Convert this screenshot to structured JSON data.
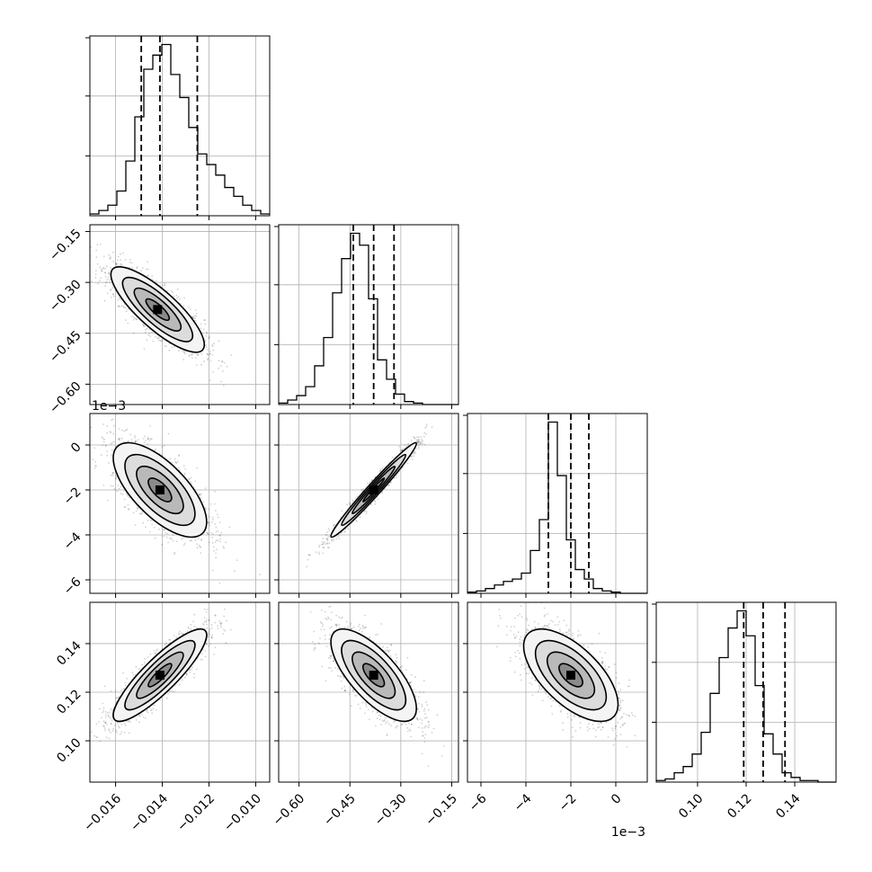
{
  "chart_data": {
    "type": "corner",
    "parameters": [
      {
        "range": [
          -0.0171,
          -0.0094
        ],
        "ticks": [
          -0.016,
          -0.014,
          -0.012,
          -0.01
        ],
        "tick_labels": [
          "−0.016",
          "−0.014",
          "−0.012",
          "−0.010"
        ],
        "offset_text": ""
      },
      {
        "range": [
          -0.66,
          -0.13
        ],
        "ticks": [
          -0.6,
          -0.45,
          -0.3,
          -0.15
        ],
        "tick_labels": [
          "−0.60",
          "−0.45",
          "−0.30",
          "−0.15"
        ],
        "offset_text": ""
      },
      {
        "range": [
          -0.0066,
          0.0014
        ],
        "ticks": [
          -0.006,
          -0.004,
          -0.002,
          0.0
        ],
        "tick_labels": [
          "−6",
          "−4",
          "−2",
          "0"
        ],
        "offset_text": "1e−3"
      },
      {
        "range": [
          0.083,
          0.157
        ],
        "ticks": [
          0.1,
          0.12,
          0.14
        ],
        "tick_labels": [
          "0.10",
          "0.12",
          "0.14"
        ],
        "offset_text": ""
      }
    ],
    "quantiles": [
      [
        -0.0149,
        -0.0141,
        -0.0125
      ],
      [
        -0.44,
        -0.38,
        -0.32
      ],
      [
        -0.003,
        -0.002,
        -0.0012
      ],
      [
        0.119,
        0.127,
        0.136
      ]
    ],
    "histograms": [
      {
        "edges_start": -0.0171,
        "bin_width": 0.000385,
        "counts": [
          1,
          3,
          6,
          14,
          31,
          56,
          83,
          91,
          97,
          80,
          67,
          50,
          35,
          29,
          23,
          16,
          11,
          6,
          3,
          1
        ]
      },
      {
        "edges_start": -0.66,
        "bin_width": 0.0265,
        "counts": [
          1,
          3,
          6,
          12,
          26,
          45,
          75,
          98,
          115,
          107,
          71,
          30,
          17,
          7,
          2,
          1,
          0,
          0,
          0,
          0
        ]
      },
      {
        "edges_start": -0.0066,
        "bin_width": 0.0004,
        "counts": [
          1,
          2,
          4,
          7,
          10,
          12,
          17,
          36,
          62,
          144,
          99,
          45,
          20,
          12,
          4,
          2,
          1,
          0,
          0,
          0
        ]
      },
      {
        "edges_start": 0.083,
        "bin_width": 0.0037,
        "counts": [
          1,
          2,
          6,
          10,
          18,
          32,
          57,
          80,
          99,
          110,
          94,
          62,
          31,
          18,
          6,
          3,
          1,
          1,
          0,
          0
        ]
      }
    ],
    "pairs": [
      {
        "row": 1,
        "col": 0,
        "mean": [
          -0.0142,
          -0.38
        ],
        "sd": [
          0.001,
          0.063
        ],
        "corr": -0.82
      },
      {
        "row": 2,
        "col": 0,
        "mean": [
          -0.0141,
          -0.002
        ],
        "sd": [
          0.001,
          0.00105
        ],
        "corr": -0.68
      },
      {
        "row": 2,
        "col": 1,
        "mean": [
          -0.38,
          -0.002
        ],
        "sd": [
          0.063,
          0.00105
        ],
        "corr": 0.98
      },
      {
        "row": 3,
        "col": 0,
        "mean": [
          -0.0141,
          0.127
        ],
        "sd": [
          0.001,
          0.0095
        ],
        "corr": 0.87
      },
      {
        "row": 3,
        "col": 1,
        "mean": [
          -0.38,
          0.127
        ],
        "sd": [
          0.063,
          0.0095
        ],
        "corr": -0.72
      },
      {
        "row": 3,
        "col": 2,
        "mean": [
          -0.002,
          0.127
        ],
        "sd": [
          0.00105,
          0.0095
        ],
        "corr": -0.63
      }
    ],
    "contour_levels_sigma": [
      0.5,
      1.0,
      1.5,
      2.0
    ],
    "grid": true,
    "colors": {
      "line": "#000000",
      "grid": "#b0b0b0",
      "frame": "#000000",
      "density": "#000000"
    }
  }
}
